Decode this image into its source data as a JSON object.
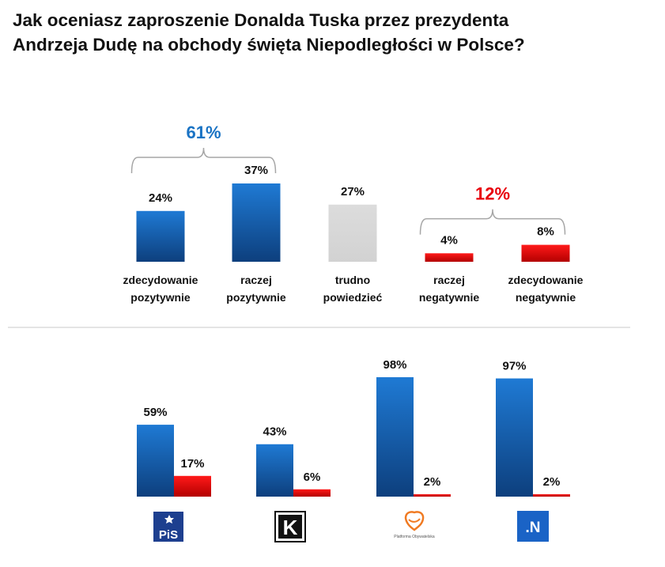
{
  "title_lines": [
    "Jak oceniasz zaproszenie Donalda Tuska przez prezydenta",
    "Andrzeja Dudę na obchody święta Niepodległości w Polsce?"
  ],
  "colors": {
    "positive": "#1b6fc2",
    "neutral": "#d9d9d9",
    "negative": "#e8000b",
    "positive_sum": "#1a73c4",
    "negative_sum": "#e8000b",
    "brace": "#a6a6a6"
  },
  "chart_data": [
    {
      "type": "bar",
      "title": "Jak oceniasz zaproszenie Donalda Tuska przez prezydenta Andrzeja Dudę na obchody święta Niepodległości w Polsce?",
      "categories": [
        [
          "zdecydowanie",
          "pozytywnie"
        ],
        [
          "raczej",
          "pozytywnie"
        ],
        [
          "trudno",
          "powiedzieć"
        ],
        [
          "raczej",
          "negatywnie"
        ],
        [
          "zdecydowanie",
          "negatywnie"
        ]
      ],
      "values": [
        24,
        37,
        27,
        4,
        8
      ],
      "labels": [
        "24%",
        "37%",
        "27%",
        "4%",
        "8%"
      ],
      "bar_kinds": [
        "positive",
        "positive",
        "neutral",
        "negative",
        "negative"
      ],
      "group_totals": [
        {
          "label": "61%",
          "kind": "positive",
          "covers": [
            0,
            1
          ]
        },
        {
          "label": "12%",
          "kind": "negative",
          "covers": [
            3,
            4
          ]
        }
      ],
      "ylim": [
        0,
        40
      ]
    },
    {
      "type": "bar",
      "groups": [
        "PiS",
        "Kukiz'15",
        "Platforma Obywatelska",
        "Nowoczesna"
      ],
      "series": [
        {
          "name": "pozytywnie",
          "kind": "positive",
          "values": [
            59,
            43,
            98,
            97
          ],
          "labels": [
            "59%",
            "43%",
            "98%",
            "97%"
          ]
        },
        {
          "name": "negatywnie",
          "kind": "negative",
          "values": [
            17,
            6,
            2,
            2
          ],
          "labels": [
            "17%",
            "6%",
            "2%",
            "2%"
          ]
        }
      ],
      "ylim": [
        0,
        100
      ]
    }
  ],
  "logos": [
    {
      "party": "PiS",
      "text": "PiS"
    },
    {
      "party": "Kukiz'15",
      "text": "K"
    },
    {
      "party": "Platforma Obywatelska",
      "text": "Platforma Obywatelska"
    },
    {
      "party": "Nowoczesna",
      "text": ".N"
    }
  ]
}
